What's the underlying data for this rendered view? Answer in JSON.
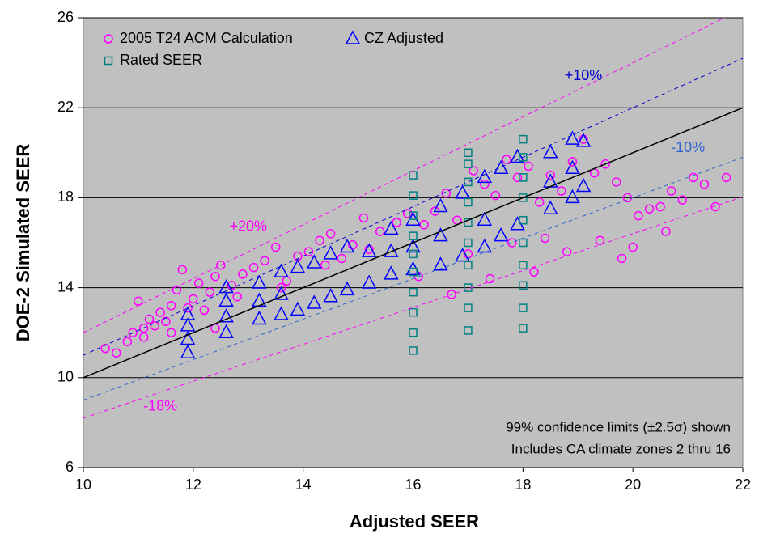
{
  "chart_data": {
    "type": "scatter",
    "x_label": "Adjusted SEER",
    "y_label": "DOE-2 Simulated SEER",
    "xlim": [
      10,
      22
    ],
    "ylim": [
      6,
      26
    ],
    "xticks": [
      10,
      12,
      14,
      16,
      18,
      20,
      22
    ],
    "yticks": [
      6,
      10,
      14,
      18,
      22,
      26
    ],
    "grid": true,
    "legend": "upper left",
    "series": [
      {
        "name": "2005 T24 ACM Calculation",
        "color": "#ff00ff",
        "marker": "circle",
        "x": [
          10.4,
          10.6,
          10.8,
          10.9,
          11.0,
          11.1,
          11.2,
          11.3,
          11.4,
          11.5,
          11.6,
          11.7,
          11.8,
          11.9,
          12.0,
          12.1,
          12.2,
          12.3,
          12.4,
          12.5,
          12.7,
          12.9,
          13.1,
          13.3,
          13.5,
          13.7,
          13.9,
          14.1,
          14.3,
          14.5,
          14.7,
          14.9,
          15.1,
          15.4,
          15.7,
          15.9,
          16.2,
          16.4,
          16.6,
          16.8,
          17.1,
          17.3,
          17.5,
          17.7,
          17.9,
          18.1,
          18.3,
          18.5,
          18.7,
          18.9,
          19.1,
          19.3,
          19.5,
          19.7,
          19.9,
          20.1,
          20.3,
          20.5,
          20.7,
          20.9,
          21.1,
          21.3,
          21.5,
          21.7,
          11.6,
          12.2,
          12.8,
          13.6,
          14.4,
          15.2,
          16.1,
          16.7,
          17.4,
          18.2,
          18.8,
          19.4,
          20.0,
          20.6,
          11.1,
          12.4,
          17.8,
          18.4,
          19.8,
          17.0
        ],
        "y": [
          11.3,
          11.1,
          11.6,
          12.0,
          13.4,
          12.2,
          12.6,
          12.3,
          12.9,
          12.5,
          13.2,
          13.9,
          14.8,
          13.1,
          13.5,
          14.2,
          13.0,
          13.8,
          14.5,
          15.0,
          14.1,
          14.6,
          14.9,
          15.2,
          15.8,
          14.3,
          15.4,
          15.6,
          16.1,
          16.4,
          15.3,
          15.9,
          17.1,
          16.5,
          16.9,
          17.3,
          16.8,
          17.4,
          18.2,
          17.0,
          19.2,
          18.6,
          18.1,
          19.7,
          18.9,
          19.4,
          17.8,
          19.0,
          18.3,
          19.6,
          20.6,
          19.1,
          19.5,
          18.7,
          18.0,
          17.2,
          17.5,
          17.6,
          18.3,
          17.9,
          18.9,
          18.6,
          17.6,
          18.9,
          12.0,
          13.0,
          13.6,
          14.0,
          15.0,
          15.7,
          14.5,
          13.7,
          14.4,
          14.7,
          15.6,
          16.1,
          15.8,
          16.5,
          11.8,
          12.2,
          16.0,
          16.2,
          15.3,
          15.5
        ]
      },
      {
        "name": "CZ Adjusted",
        "color": "#0000ff",
        "marker": "triangle",
        "x": [
          11.9,
          11.9,
          11.9,
          11.9,
          12.6,
          12.6,
          12.6,
          12.6,
          13.2,
          13.2,
          13.2,
          13.6,
          13.6,
          13.6,
          13.9,
          13.9,
          14.2,
          14.2,
          14.5,
          14.5,
          14.8,
          14.8,
          15.2,
          15.2,
          15.6,
          15.6,
          15.6,
          16.0,
          16.0,
          16.0,
          16.5,
          16.5,
          16.5,
          16.9,
          16.9,
          17.3,
          17.3,
          17.3,
          17.6,
          17.6,
          17.9,
          17.9,
          18.5,
          18.5,
          18.5,
          18.9,
          18.9,
          18.9,
          19.1,
          19.1
        ],
        "y": [
          11.1,
          11.7,
          12.3,
          12.8,
          12.0,
          12.7,
          13.4,
          14.0,
          12.6,
          13.4,
          14.2,
          12.8,
          13.7,
          14.7,
          13.0,
          14.9,
          13.3,
          15.1,
          13.6,
          15.5,
          13.9,
          15.8,
          14.2,
          15.6,
          14.6,
          15.6,
          16.6,
          14.8,
          15.8,
          17.0,
          15.0,
          16.3,
          17.6,
          15.4,
          18.2,
          15.8,
          17.0,
          18.9,
          16.3,
          19.3,
          16.8,
          19.8,
          17.5,
          18.7,
          20.0,
          18.0,
          19.3,
          20.6,
          18.5,
          20.5
        ]
      },
      {
        "name": "Rated SEER",
        "color": "#008080",
        "marker": "square",
        "x": [
          16,
          16,
          16,
          16,
          16,
          16,
          16,
          16,
          16,
          16,
          17,
          17,
          17,
          17,
          17,
          17,
          17,
          17,
          17,
          17,
          18,
          18,
          18,
          18,
          18,
          18,
          18,
          18,
          18,
          18
        ],
        "y": [
          11.2,
          12.0,
          12.9,
          13.8,
          14.7,
          15.5,
          16.3,
          17.2,
          18.1,
          19.0,
          12.1,
          13.1,
          14.0,
          15.0,
          16.0,
          16.9,
          17.8,
          18.7,
          19.5,
          20.0,
          12.2,
          13.1,
          14.1,
          15.0,
          16.0,
          17.0,
          18.0,
          18.9,
          19.8,
          20.6
        ]
      }
    ],
    "reference_lines": [
      {
        "factor": 1,
        "color": "#000000",
        "dashed": false
      },
      {
        "factor": 1.1,
        "label": "+10%",
        "color": "#0000cc",
        "dashed": true,
        "label_x": 19.1,
        "label_y": 23.4
      },
      {
        "factor": 0.9,
        "label": "-10%",
        "color": "#3366cc",
        "dashed": true,
        "label_x": 21.0,
        "label_y": 20.2
      },
      {
        "factor": 1.2,
        "label": "+20%",
        "color": "#ff00ff",
        "dashed": true,
        "label_x": 13.0,
        "label_y": 16.7
      },
      {
        "factor": 0.82,
        "label": "-18%",
        "color": "#ff00ff",
        "dashed": true,
        "label_x": 11.4,
        "label_y": 8.7
      }
    ],
    "annotations": [
      "99% confidence limits (±2.5σ) shown",
      "Includes CA climate zones 2 thru 16"
    ]
  }
}
